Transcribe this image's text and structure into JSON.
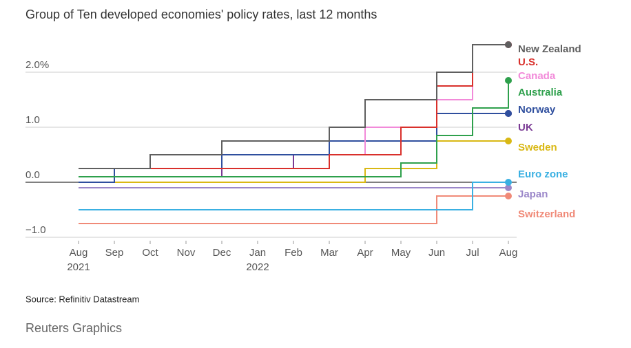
{
  "chart_data": {
    "type": "step-line",
    "title": "Group of Ten developed economies' policy rates, last 12 months",
    "x": [
      "2021-08",
      "2021-09",
      "2021-10",
      "2021-11",
      "2021-12",
      "2022-01",
      "2022-02",
      "2022-03",
      "2022-04",
      "2022-05",
      "2022-06",
      "2022-07",
      "2022-08"
    ],
    "xticks": [
      {
        "value": "2021-08",
        "label": "Aug"
      },
      {
        "value": "2021-09",
        "label": "Sep"
      },
      {
        "value": "2021-10",
        "label": "Oct"
      },
      {
        "value": "2021-11",
        "label": "Nov"
      },
      {
        "value": "2021-12",
        "label": "Dec"
      },
      {
        "value": "2022-01",
        "label": "Jan"
      },
      {
        "value": "2022-02",
        "label": "Feb"
      },
      {
        "value": "2022-03",
        "label": "Mar"
      },
      {
        "value": "2022-04",
        "label": "Apr"
      },
      {
        "value": "2022-05",
        "label": "May"
      },
      {
        "value": "2022-06",
        "label": "Jun"
      },
      {
        "value": "2022-07",
        "label": "Jul"
      },
      {
        "value": "2022-08",
        "label": "Aug"
      }
    ],
    "x_year_labels": [
      {
        "value": "2021-08",
        "label": "2021"
      },
      {
        "value": "2022-01",
        "label": "2022"
      }
    ],
    "ylim": [
      -1.1,
      2.6
    ],
    "yticks": [
      {
        "value": -1,
        "label": "−1.0"
      },
      {
        "value": 0,
        "label": "0.0"
      },
      {
        "value": 1,
        "label": "1.0"
      },
      {
        "value": 2,
        "label": "2.0%"
      }
    ],
    "grid": true,
    "series": [
      {
        "name": "New Zealand",
        "color": "#5f5f5f",
        "values": [
          0.25,
          0.25,
          0.5,
          0.5,
          0.75,
          0.75,
          0.75,
          1.0,
          1.5,
          1.5,
          2.0,
          2.5,
          2.5
        ]
      },
      {
        "name": "U.S.",
        "color": "#d9302b",
        "values": [
          0.25,
          0.25,
          0.25,
          0.25,
          0.25,
          0.25,
          0.25,
          0.5,
          0.5,
          1.0,
          1.75,
          2.5,
          2.5
        ]
      },
      {
        "name": "Canada",
        "color": "#f28ad9",
        "values": [
          0.25,
          0.25,
          0.25,
          0.25,
          0.25,
          0.25,
          0.25,
          0.5,
          1.0,
          1.0,
          1.5,
          2.5,
          2.5
        ]
      },
      {
        "name": "Australia",
        "color": "#2ea04c",
        "values": [
          0.1,
          0.1,
          0.1,
          0.1,
          0.1,
          0.1,
          0.1,
          0.1,
          0.1,
          0.35,
          0.85,
          1.35,
          1.85
        ]
      },
      {
        "name": "Norway",
        "color": "#2f4f9e",
        "values": [
          0,
          0.25,
          0.25,
          0.25,
          0.5,
          0.5,
          0.5,
          0.75,
          0.75,
          0.75,
          1.25,
          1.25,
          1.25
        ]
      },
      {
        "name": "UK",
        "color": "#7a3a94",
        "values": [
          0.1,
          0.1,
          0.1,
          0.1,
          0.25,
          0.25,
          0.5,
          0.75,
          0.75,
          1.0,
          1.25,
          1.25,
          1.25
        ]
      },
      {
        "name": "Sweden",
        "color": "#d9b814",
        "values": [
          0,
          0,
          0,
          0,
          0,
          0,
          0,
          0,
          0.25,
          0.25,
          0.75,
          0.75,
          0.75
        ]
      },
      {
        "name": "Euro zone",
        "color": "#3ab0e2",
        "values": [
          -0.5,
          -0.5,
          -0.5,
          -0.5,
          -0.5,
          -0.5,
          -0.5,
          -0.5,
          -0.5,
          -0.5,
          -0.5,
          0.0,
          0.0
        ]
      },
      {
        "name": "Japan",
        "color": "#9b87c9",
        "values": [
          -0.1,
          -0.1,
          -0.1,
          -0.1,
          -0.1,
          -0.1,
          -0.1,
          -0.1,
          -0.1,
          -0.1,
          -0.1,
          -0.1,
          -0.1
        ]
      },
      {
        "name": "Switzerland",
        "color": "#f08a78",
        "values": [
          -0.75,
          -0.75,
          -0.75,
          -0.75,
          -0.75,
          -0.75,
          -0.75,
          -0.75,
          -0.75,
          -0.75,
          -0.25,
          -0.25,
          -0.25
        ]
      }
    ],
    "source": "Source: Refinitiv Datastream",
    "credit": "Reuters Graphics"
  }
}
